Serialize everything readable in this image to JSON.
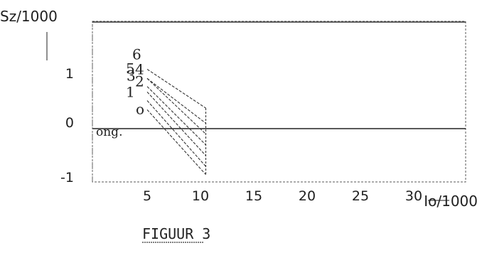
{
  "chart_data": {
    "type": "line",
    "title": "FIGUUR 3",
    "ylabel": "Sz/1000",
    "xlabel": "Io/1000",
    "xlim": [
      0,
      35
    ],
    "ylim": [
      -1,
      2
    ],
    "x_ticks": [
      "5",
      "10",
      "15",
      "20",
      "25",
      "30"
    ],
    "y_ticks": [
      "1",
      "0",
      "-1"
    ],
    "baseline_label": "ong.",
    "grid": false,
    "series": [
      {
        "name": "o",
        "x": [
          5,
          10.5
        ],
        "y": [
          0.35,
          -0.85
        ]
      },
      {
        "name": "1",
        "x": [
          5,
          10.5
        ],
        "y": [
          0.52,
          -0.7
        ]
      },
      {
        "name": "2",
        "x": [
          5,
          10.5
        ],
        "y": [
          0.68,
          -0.5
        ]
      },
      {
        "name": "3",
        "x": [
          5,
          10.5
        ],
        "y": [
          0.78,
          -0.3
        ]
      },
      {
        "name": "4",
        "x": [
          5,
          10.5
        ],
        "y": [
          0.93,
          -0.1
        ]
      },
      {
        "name": "5",
        "x": [
          5,
          10.5
        ],
        "y": [
          0.93,
          0.1
        ]
      },
      {
        "name": "6",
        "x": [
          5,
          10.5
        ],
        "y": [
          1.1,
          0.38
        ]
      }
    ],
    "envelope_right_x": 10.5
  }
}
